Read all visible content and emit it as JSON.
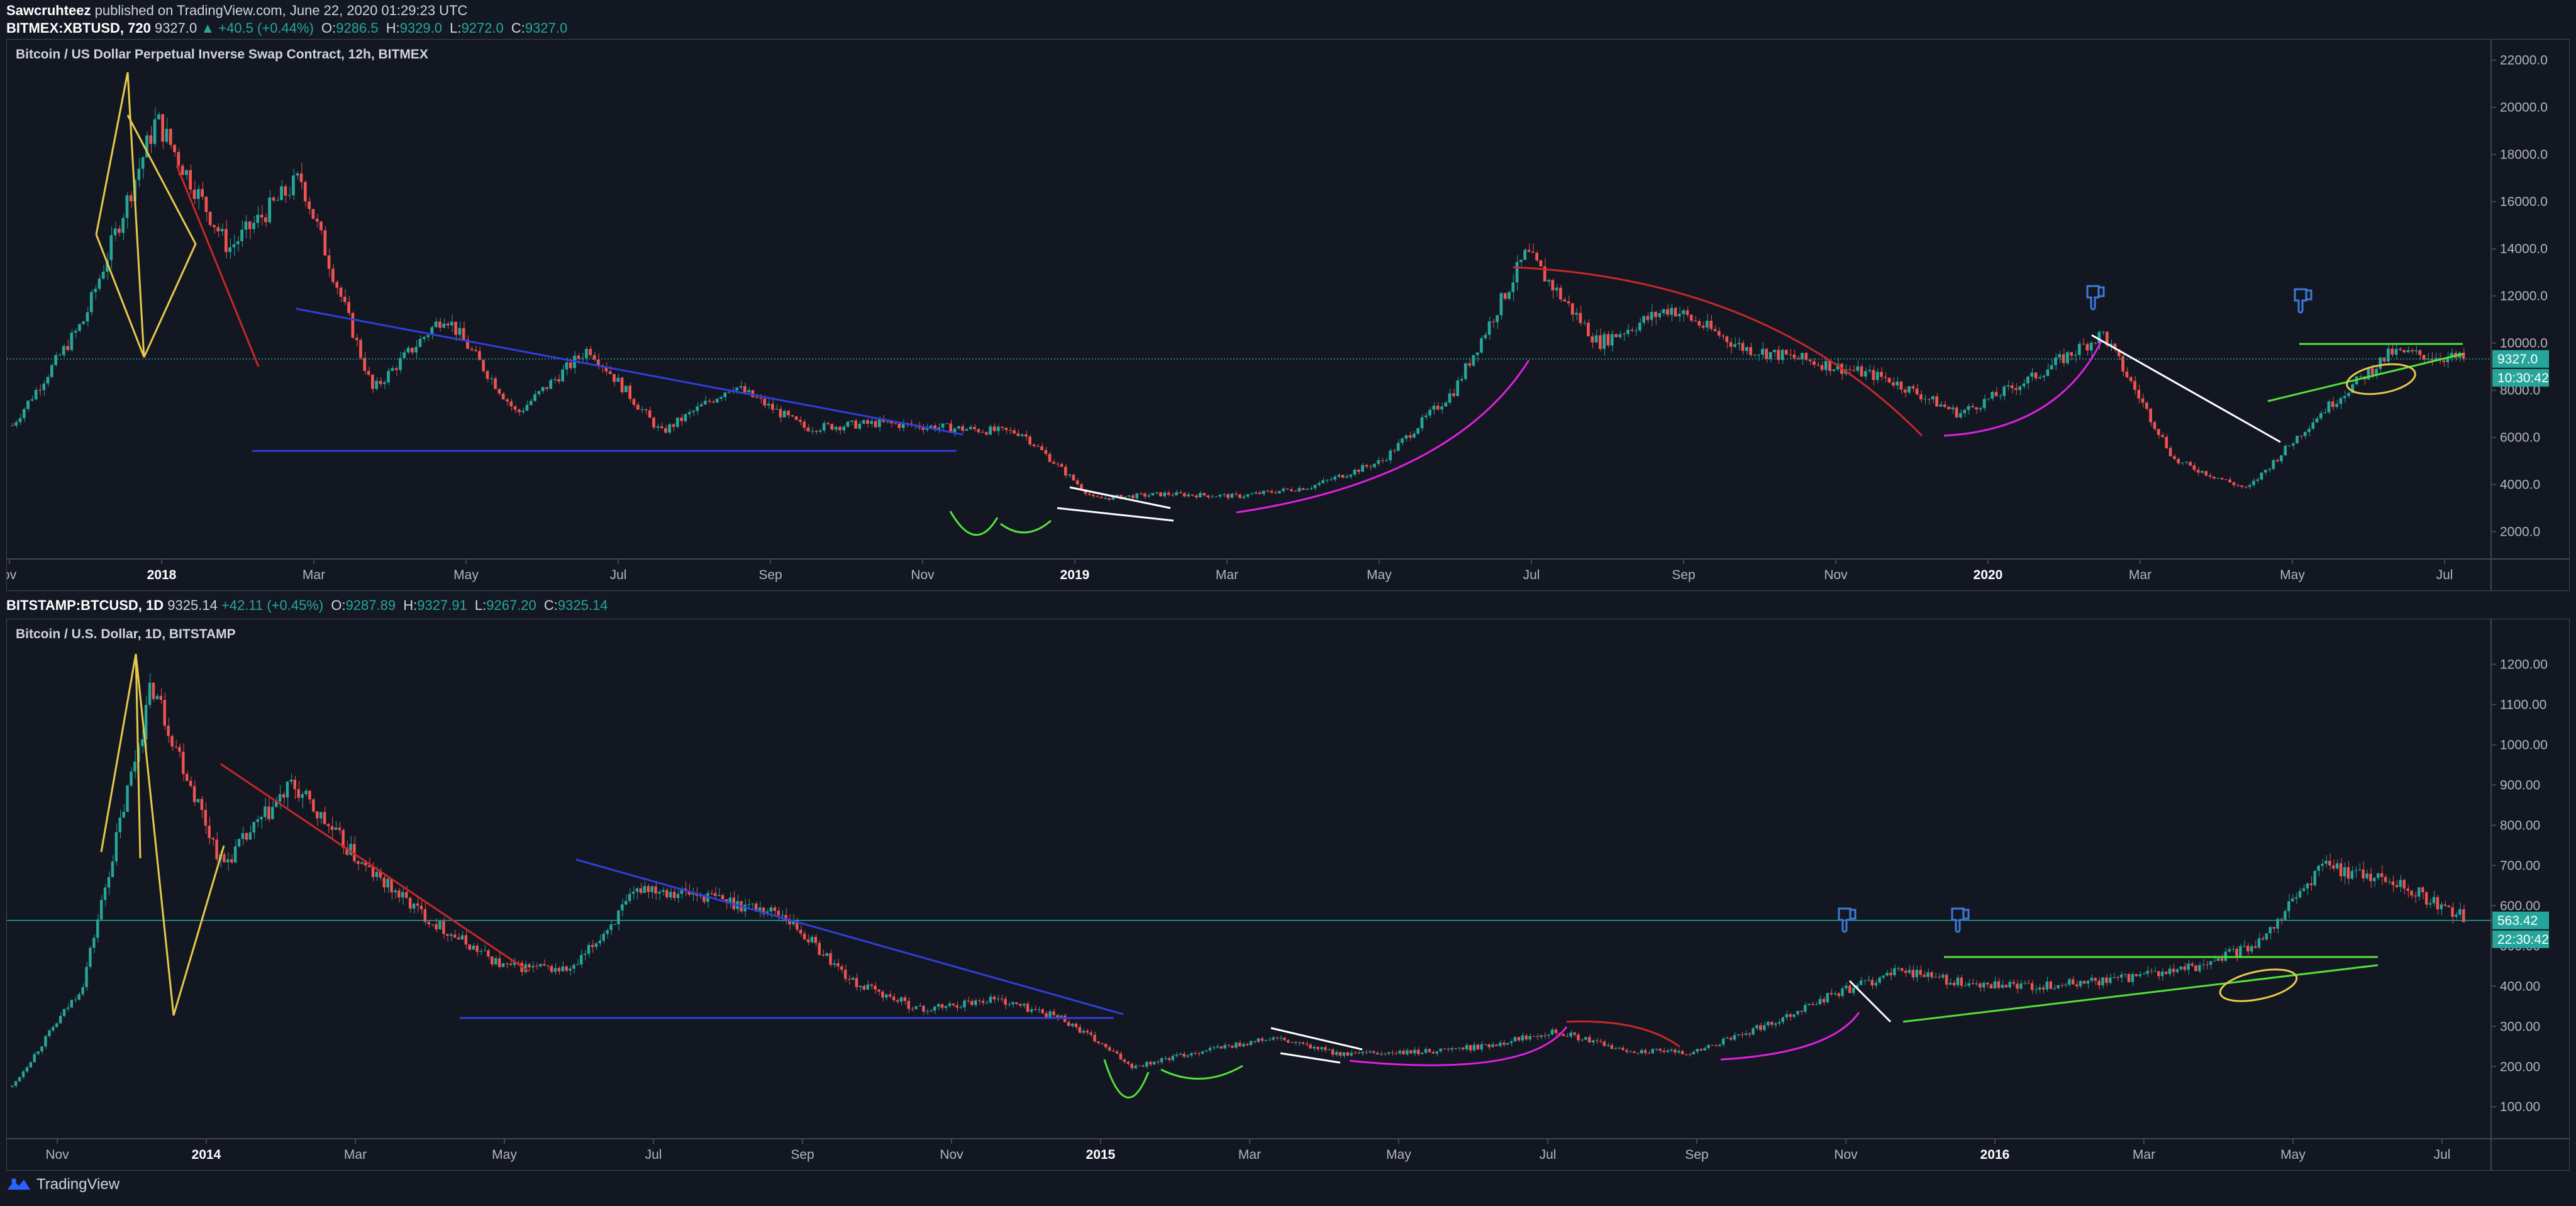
{
  "header": {
    "author": "Sawcruhteez",
    "published": "published on TradingView.com, June 22, 2020 01:29:23 UTC"
  },
  "chart1": {
    "symbol": "BITMEX:XBTUSD, 720",
    "last": "9327.0",
    "change": "▲ +40.5 (+0.44%)",
    "o_label": "O:",
    "o": "9286.5",
    "h_label": "H:",
    "h": "9329.0",
    "l_label": "L:",
    "l": "9272.0",
    "c_label": "C:",
    "c": "9327.0",
    "title": "Bitcoin / US Dollar Perpetual Inverse Swap Contract, 12h, BITMEX",
    "price_badge": "9327.0",
    "timer_badge": "10:30:42"
  },
  "chart2": {
    "symbol": "BITSTAMP:BTCUSD, 1D",
    "last": "9325.14",
    "change": "+42.11 (+0.45%)",
    "o_label": "O:",
    "o": "9287.89",
    "h_label": "H:",
    "h": "9327.91",
    "l_label": "L:",
    "l": "9267.20",
    "c_label": "C:",
    "c": "9325.14",
    "title": "Bitcoin / U.S. Dollar, 1D, BITSTAMP",
    "price_badge": "563.42",
    "timer_badge": "22:30:42"
  },
  "footer": {
    "brand": "TradingView"
  },
  "colors": {
    "background": "#131722",
    "up": "#26a69a",
    "down": "#ef5350",
    "yellow": "#e6c94a",
    "red_trend": "#c62828",
    "blue_trend": "#2f3fd8",
    "magenta": "#e020e0",
    "green_trend": "#52e23a",
    "white_trend": "#ffffff",
    "hand_icon": "#3d7bd9"
  },
  "chart_data": [
    {
      "type": "candlestick",
      "title": "Bitcoin / US Dollar Perpetual Inverse Swap Contract, 12h, BITMEX",
      "ylim": [
        1000,
        22500
      ],
      "y_ticks": [
        "22000.0",
        "20000.0",
        "18000.0",
        "16000.0",
        "14000.0",
        "12000.0",
        "10000.0",
        "8000.0",
        "6000.0",
        "4000.0",
        "2000.0"
      ],
      "x_ticks": [
        "ov",
        "2018",
        "Mar",
        "May",
        "Jul",
        "Sep",
        "Nov",
        "2019",
        "Mar",
        "May",
        "Jul",
        "Sep",
        "Nov",
        "2020",
        "Mar",
        "May",
        "Jul"
      ],
      "bold_x_ticks": [
        "2018",
        "2019",
        "2020"
      ],
      "grid": false,
      "series": [
        {
          "x": [
            "2017-11",
            "2017-12",
            "2017-12",
            "2018-01",
            "2018-01",
            "2018-02",
            "2018-03",
            "2018-04",
            "2018-05",
            "2018-06",
            "2018-07",
            "2018-08",
            "2018-09",
            "2018-10",
            "2018-11",
            "2018-12",
            "2019-01",
            "2019-02",
            "2019-03",
            "2019-04",
            "2019-05",
            "2019-06",
            "2019-07",
            "2019-08",
            "2019-09",
            "2019-10",
            "2019-11",
            "2019-12",
            "2020-01",
            "2020-02",
            "2020-03",
            "2020-03",
            "2020-04",
            "2020-05",
            "2020-06"
          ],
          "values": [
            6500,
            11000,
            19500,
            14000,
            17000,
            8000,
            11200,
            7000,
            9800,
            6200,
            8200,
            6400,
            6600,
            6400,
            6200,
            3400,
            3600,
            3500,
            3900,
            5000,
            8000,
            13800,
            10000,
            11500,
            9800,
            9200,
            8500,
            7000,
            8500,
            10400,
            5000,
            3800,
            7000,
            9600,
            9327
          ]
        }
      ]
    },
    {
      "type": "candlestick",
      "title": "Bitcoin / U.S. Dollar, 1D, BITSTAMP",
      "ylim": [
        30,
        1290
      ],
      "y_ticks": [
        "1200.00",
        "1100.00",
        "1000.00",
        "900.00",
        "800.00",
        "700.00",
        "600.00",
        "500.00",
        "400.00",
        "300.00",
        "200.00",
        "100.00"
      ],
      "x_ticks": [
        "Nov",
        "2014",
        "Mar",
        "May",
        "Jul",
        "Sep",
        "Nov",
        "2015",
        "Mar",
        "May",
        "Jul",
        "Sep",
        "Nov",
        "2016",
        "Mar",
        "May",
        "Jul"
      ],
      "bold_x_ticks": [
        "2014",
        "2015",
        "2016"
      ],
      "grid": false,
      "series": [
        {
          "x": [
            "2013-10",
            "2013-11",
            "2013-12",
            "2013-12",
            "2014-01",
            "2014-02",
            "2014-03",
            "2014-04",
            "2014-05",
            "2014-06",
            "2014-07",
            "2014-08",
            "2014-09",
            "2014-10",
            "2014-11",
            "2014-12",
            "2015-01",
            "2015-02",
            "2015-03",
            "2015-04",
            "2015-05",
            "2015-06",
            "2015-07",
            "2015-08",
            "2015-09",
            "2015-10",
            "2015-11",
            "2015-12",
            "2016-01",
            "2016-02",
            "2016-03",
            "2016-04",
            "2016-05",
            "2016-06",
            "2016-07",
            "2016-08"
          ],
          "values": [
            150,
            400,
            1150,
            700,
            900,
            700,
            560,
            450,
            440,
            650,
            620,
            580,
            410,
            340,
            370,
            320,
            200,
            240,
            270,
            230,
            235,
            250,
            290,
            240,
            235,
            300,
            380,
            440,
            400,
            400,
            415,
            440,
            500,
            700,
            660,
            570
          ]
        }
      ]
    }
  ]
}
